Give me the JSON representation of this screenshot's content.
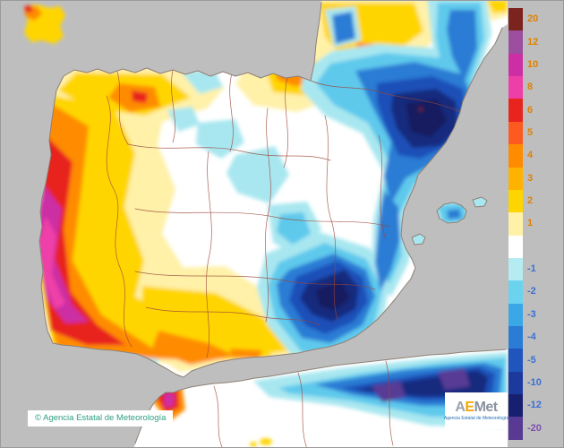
{
  "legend": {
    "segments": [
      {
        "value": "20",
        "color": "#7b241e",
        "text_color": "#e08000"
      },
      {
        "value": "12",
        "color": "#9b4f9e",
        "text_color": "#e08000"
      },
      {
        "value": "10",
        "color": "#cc2fa4",
        "text_color": "#e08000"
      },
      {
        "value": "8",
        "color": "#ee3fa8",
        "text_color": "#e08000"
      },
      {
        "value": "6",
        "color": "#e8241f",
        "text_color": "#e08000"
      },
      {
        "value": "5",
        "color": "#fd5a21",
        "text_color": "#e08000"
      },
      {
        "value": "4",
        "color": "#ff8c00",
        "text_color": "#e08000"
      },
      {
        "value": "3",
        "color": "#ffb300",
        "text_color": "#e08000"
      },
      {
        "value": "2",
        "color": "#ffd500",
        "text_color": "#e08000"
      },
      {
        "value": "1",
        "color": "#fff1a8",
        "text_color": "#e08000"
      },
      {
        "value": "",
        "color": "#ffffff",
        "text_color": "#888888"
      },
      {
        "value": "-1",
        "color": "#b4ecf2",
        "text_color": "#3a6fd8"
      },
      {
        "value": "-2",
        "color": "#6cd3ef",
        "text_color": "#3a6fd8"
      },
      {
        "value": "-3",
        "color": "#3aa7e6",
        "text_color": "#3a6fd8"
      },
      {
        "value": "-4",
        "color": "#2a7cd4",
        "text_color": "#3a6fd8"
      },
      {
        "value": "-5",
        "color": "#1f55bd",
        "text_color": "#3a6fd8"
      },
      {
        "value": "-10",
        "color": "#1c3a9e",
        "text_color": "#3a6fd8"
      },
      {
        "value": "-12",
        "color": "#171f71",
        "text_color": "#3a6fd8"
      },
      {
        "value": "-20",
        "color": "#583a94",
        "text_color": "#7d4fb0"
      }
    ]
  },
  "footer": {
    "copyright": "© Agencia Estatal de Meteorología"
  },
  "logo": {
    "letter_a": "A",
    "letter_e": "E",
    "letter_rest": "Met",
    "tagline": "Agencia Estatal de Meteorología"
  },
  "colors": {
    "sea": "#bebebe",
    "land": "#ffffff",
    "coastline": "#8f8076",
    "province_border": "#9b4538"
  }
}
